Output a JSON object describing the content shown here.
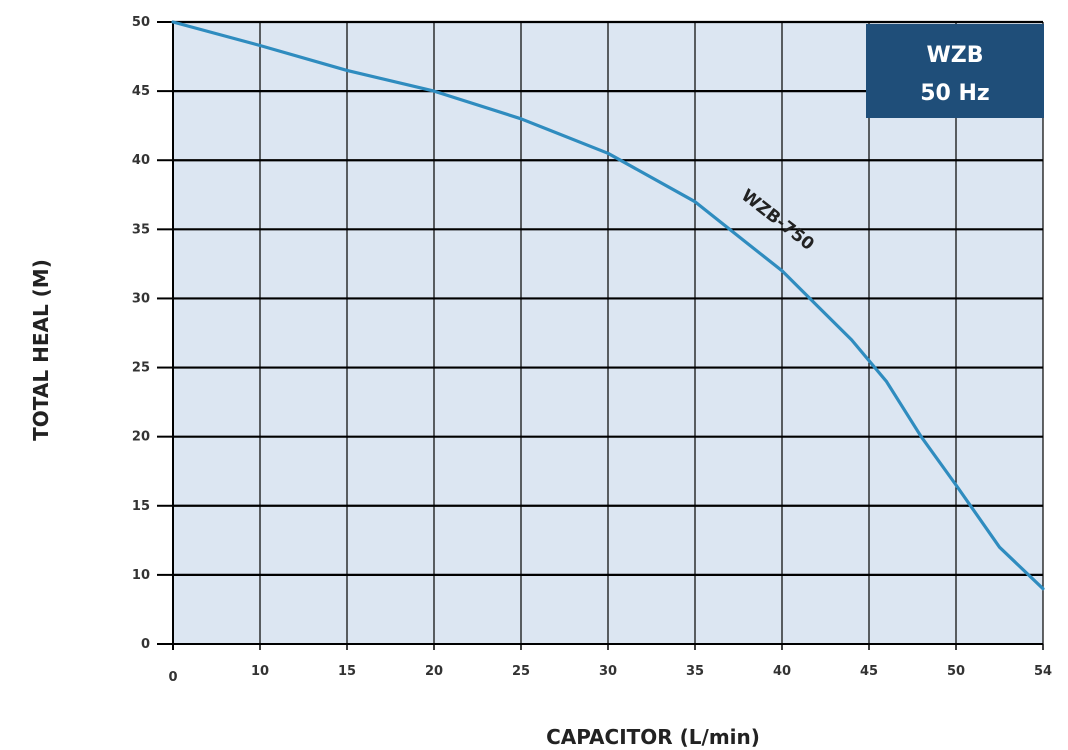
{
  "chart_data": {
    "type": "line",
    "xlabel": "CAPACITOR (L/min)",
    "ylabel": "TOTAL HEAL (M)",
    "x_tick_labels": [
      "0",
      "10",
      "15",
      "20",
      "25",
      "30",
      "35",
      "40",
      "45",
      "50",
      "54"
    ],
    "y_ticks": [
      0,
      10,
      15,
      20,
      25,
      30,
      35,
      40,
      45,
      50
    ],
    "y_tick_labels": [
      "0",
      "10",
      "15",
      "20",
      "25",
      "30",
      "35",
      "40",
      "45",
      "50"
    ],
    "ylim": [
      0,
      50
    ],
    "grid": true,
    "badge": {
      "line1": "WZB",
      "line2": "50 Hz"
    },
    "series": [
      {
        "name": "WZB-750",
        "color": "#2f8cbf",
        "points": [
          [
            0,
            50
          ],
          [
            10,
            48.3
          ],
          [
            15,
            46.5
          ],
          [
            20,
            45
          ],
          [
            25,
            43
          ],
          [
            30,
            40.5
          ],
          [
            35,
            37
          ],
          [
            38,
            34
          ],
          [
            40,
            32
          ],
          [
            42,
            29.5
          ],
          [
            44,
            27
          ],
          [
            46,
            24
          ],
          [
            48,
            20
          ],
          [
            50,
            16.5
          ],
          [
            52,
            12
          ],
          [
            54,
            8
          ]
        ]
      }
    ],
    "colors": {
      "plot_background": "#dce6f2",
      "grid": "#000000",
      "badge_background": "#1f4e79"
    }
  }
}
